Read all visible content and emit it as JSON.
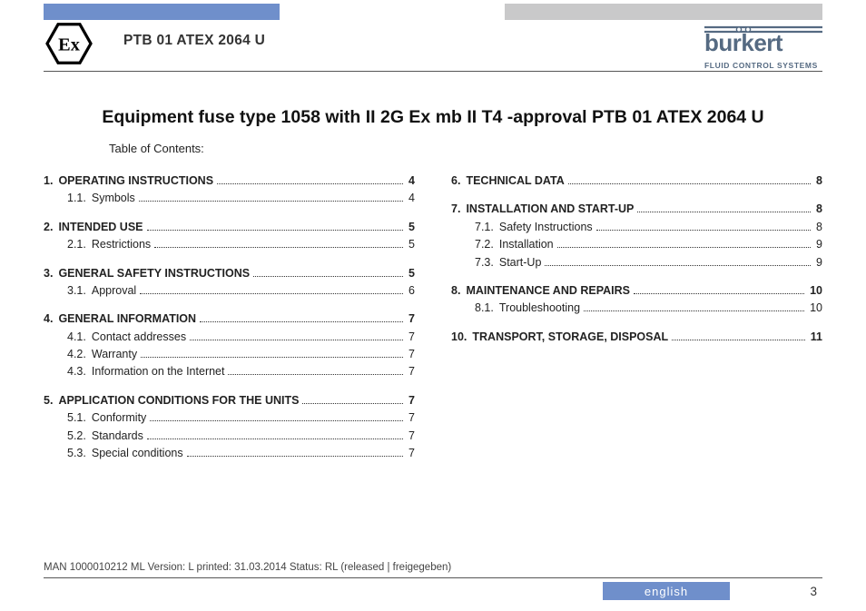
{
  "colors": {
    "accent_blue": "#6f8fcb",
    "header_grey": "#c9c9ca",
    "brand_color": "#556a82",
    "text": "#222222",
    "rule": "#555555"
  },
  "header": {
    "doc_code": "PTB 01 ATEX 2064 U",
    "ex_label": "Ex",
    "brand_name_prefix": "b",
    "brand_name": "burkert",
    "brand_tagline": "FLUID CONTROL SYSTEMS"
  },
  "title": "Equipment fuse type 1058 with II 2G Ex mb II T4 -approval PTB 01 ATEX 2064 U",
  "toc_label": "Table of Contents:",
  "toc_left": [
    {
      "num": "1.",
      "text": "OPERATING INSTRUCTIONS",
      "page": "4",
      "level": 1
    },
    {
      "num": "1.1.",
      "text": "Symbols",
      "page": "4",
      "level": 2
    },
    {
      "num": "2.",
      "text": "INTENDED USE",
      "page": "5",
      "level": 1
    },
    {
      "num": "2.1.",
      "text": "Restrictions",
      "page": "5",
      "level": 2
    },
    {
      "num": "3.",
      "text": "GENERAL SAFETY INSTRUCTIONS",
      "page": "5",
      "level": 1
    },
    {
      "num": "3.1.",
      "text": "Approval",
      "page": "6",
      "level": 2
    },
    {
      "num": "4.",
      "text": "GENERAL INFORMATION",
      "page": "7",
      "level": 1
    },
    {
      "num": "4.1.",
      "text": "Contact addresses",
      "page": "7",
      "level": 2
    },
    {
      "num": "4.2.",
      "text": "Warranty",
      "page": "7",
      "level": 2
    },
    {
      "num": "4.3.",
      "text": "Information on the Internet",
      "page": "7",
      "level": 2
    },
    {
      "num": "5.",
      "text": "APPLICATION CONDITIONS FOR THE UNITS",
      "page": "7",
      "level": 1
    },
    {
      "num": "5.1.",
      "text": "Conformity",
      "page": "7",
      "level": 2
    },
    {
      "num": "5.2.",
      "text": "Standards",
      "page": "7",
      "level": 2
    },
    {
      "num": "5.3.",
      "text": "Special conditions",
      "page": "7",
      "level": 2
    }
  ],
  "toc_right": [
    {
      "num": "6.",
      "text": "TECHNICAL DATA",
      "page": "8",
      "level": 1
    },
    {
      "num": "7.",
      "text": "INSTALLATION AND START-UP",
      "page": "8",
      "level": 1
    },
    {
      "num": "7.1.",
      "text": "Safety Instructions",
      "page": "8",
      "level": 2
    },
    {
      "num": "7.2.",
      "text": "Installation",
      "page": "9",
      "level": 2
    },
    {
      "num": "7.3.",
      "text": "Start-Up",
      "page": "9",
      "level": 2
    },
    {
      "num": "8.",
      "text": "MAINTENANCE AND REPAIRS",
      "page": "10",
      "level": 1
    },
    {
      "num": "8.1.",
      "text": "Troubleshooting",
      "page": "10",
      "level": 2
    },
    {
      "num": "10.",
      "text": "TRANSPORT, STORAGE, DISPOSAL",
      "page": "11",
      "level": 1
    }
  ],
  "footer": {
    "meta": "MAN 1000010212 ML Version: L printed: 31.03.2014 Status: RL (released | freigegeben)",
    "language": "english",
    "page_number": "3"
  }
}
